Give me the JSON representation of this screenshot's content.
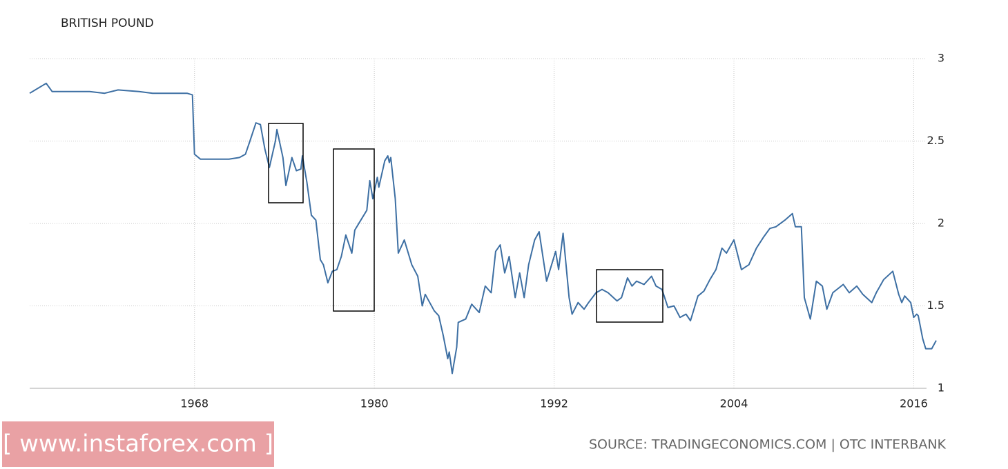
{
  "chart_data": {
    "type": "line",
    "title": "BRITISH POUND",
    "color": "#3d6fa3",
    "grid": true,
    "xlim": [
      1957,
      2017.5
    ],
    "xticks": [
      1968,
      1980,
      1992,
      2004,
      2016
    ],
    "ylim": [
      1,
      3
    ],
    "yticks": [
      1,
      1.5,
      2,
      2.5,
      3
    ],
    "x": [
      1957.0,
      1958.1,
      1958.5,
      1959.7,
      1961.0,
      1962.0,
      1962.9,
      1964.3,
      1965.2,
      1966.1,
      1967.5,
      1967.86,
      1968.0,
      1968.4,
      1969.3,
      1970.3,
      1971.0,
      1971.4,
      1971.7,
      1972.1,
      1972.4,
      1972.7,
      1973.0,
      1973.4,
      1973.5,
      1973.9,
      1974.1,
      1974.5,
      1974.8,
      1975.1,
      1975.2,
      1975.5,
      1975.8,
      1976.1,
      1976.4,
      1976.6,
      1976.9,
      1977.2,
      1977.5,
      1977.8,
      1978.1,
      1978.5,
      1978.7,
      1979.1,
      1979.5,
      1979.7,
      1979.9,
      1980.2,
      1980.3,
      1980.7,
      1980.9,
      1981.0,
      1981.1,
      1981.4,
      1981.6,
      1982.0,
      1982.5,
      1982.9,
      1983.2,
      1983.4,
      1984.0,
      1984.3,
      1984.6,
      1984.9,
      1985.0,
      1985.2,
      1985.5,
      1985.6,
      1986.1,
      1986.5,
      1987.0,
      1987.4,
      1987.8,
      1988.1,
      1988.4,
      1988.7,
      1989.0,
      1989.4,
      1989.7,
      1990.0,
      1990.3,
      1990.7,
      1991.0,
      1991.5,
      1992.1,
      1992.3,
      1992.6,
      1993.0,
      1993.2,
      1993.6,
      1994.0,
      1994.3,
      1994.8,
      1995.2,
      1995.6,
      1996.2,
      1996.5,
      1996.9,
      1997.2,
      1997.5,
      1998.0,
      1998.5,
      1998.8,
      1999.2,
      1999.6,
      2000.0,
      2000.4,
      2000.8,
      2001.1,
      2001.6,
      2002.0,
      2002.4,
      2002.8,
      2003.2,
      2003.5,
      2004.0,
      2004.5,
      2005.0,
      2005.5,
      2006.0,
      2006.4,
      2006.8,
      2007.4,
      2007.9,
      2008.1,
      2008.5,
      2008.7,
      2009.1,
      2009.5,
      2009.9,
      2010.2,
      2010.6,
      2011.3,
      2011.7,
      2012.2,
      2012.6,
      2013.2,
      2013.5,
      2014.0,
      2014.6,
      2015.0,
      2015.2,
      2015.4,
      2015.8,
      2016.0,
      2016.2,
      2016.3,
      2016.6,
      2016.8,
      2017.2,
      2017.5
    ],
    "values": [
      2.79,
      2.85,
      2.8,
      2.8,
      2.8,
      2.79,
      2.81,
      2.8,
      2.79,
      2.79,
      2.79,
      2.78,
      2.42,
      2.39,
      2.39,
      2.39,
      2.4,
      2.42,
      2.5,
      2.61,
      2.6,
      2.45,
      2.34,
      2.5,
      2.57,
      2.4,
      2.23,
      2.4,
      2.32,
      2.33,
      2.41,
      2.25,
      2.05,
      2.02,
      1.78,
      1.75,
      1.64,
      1.71,
      1.72,
      1.8,
      1.93,
      1.82,
      1.96,
      2.02,
      2.08,
      2.26,
      2.15,
      2.28,
      2.22,
      2.38,
      2.41,
      2.37,
      2.4,
      2.15,
      1.82,
      1.9,
      1.75,
      1.68,
      1.5,
      1.57,
      1.47,
      1.44,
      1.32,
      1.18,
      1.22,
      1.09,
      1.25,
      1.4,
      1.42,
      1.51,
      1.46,
      1.62,
      1.58,
      1.83,
      1.87,
      1.7,
      1.8,
      1.55,
      1.7,
      1.55,
      1.75,
      1.9,
      1.95,
      1.65,
      1.83,
      1.72,
      1.94,
      1.55,
      1.45,
      1.52,
      1.48,
      1.52,
      1.58,
      1.6,
      1.58,
      1.53,
      1.55,
      1.67,
      1.62,
      1.65,
      1.63,
      1.68,
      1.62,
      1.6,
      1.49,
      1.5,
      1.43,
      1.45,
      1.41,
      1.56,
      1.59,
      1.66,
      1.72,
      1.85,
      1.82,
      1.9,
      1.72,
      1.75,
      1.85,
      1.92,
      1.97,
      1.98,
      2.02,
      2.06,
      1.98,
      1.98,
      1.55,
      1.42,
      1.65,
      1.62,
      1.48,
      1.58,
      1.63,
      1.58,
      1.62,
      1.57,
      1.52,
      1.58,
      1.66,
      1.71,
      1.57,
      1.52,
      1.56,
      1.52,
      1.43,
      1.45,
      1.44,
      1.3,
      1.24,
      1.24,
      1.29
    ],
    "source": "SOURCE: TRADINGECONOMICS.COM | OTC INTERBANK",
    "watermark": "[ www.instaforex.com ]"
  }
}
